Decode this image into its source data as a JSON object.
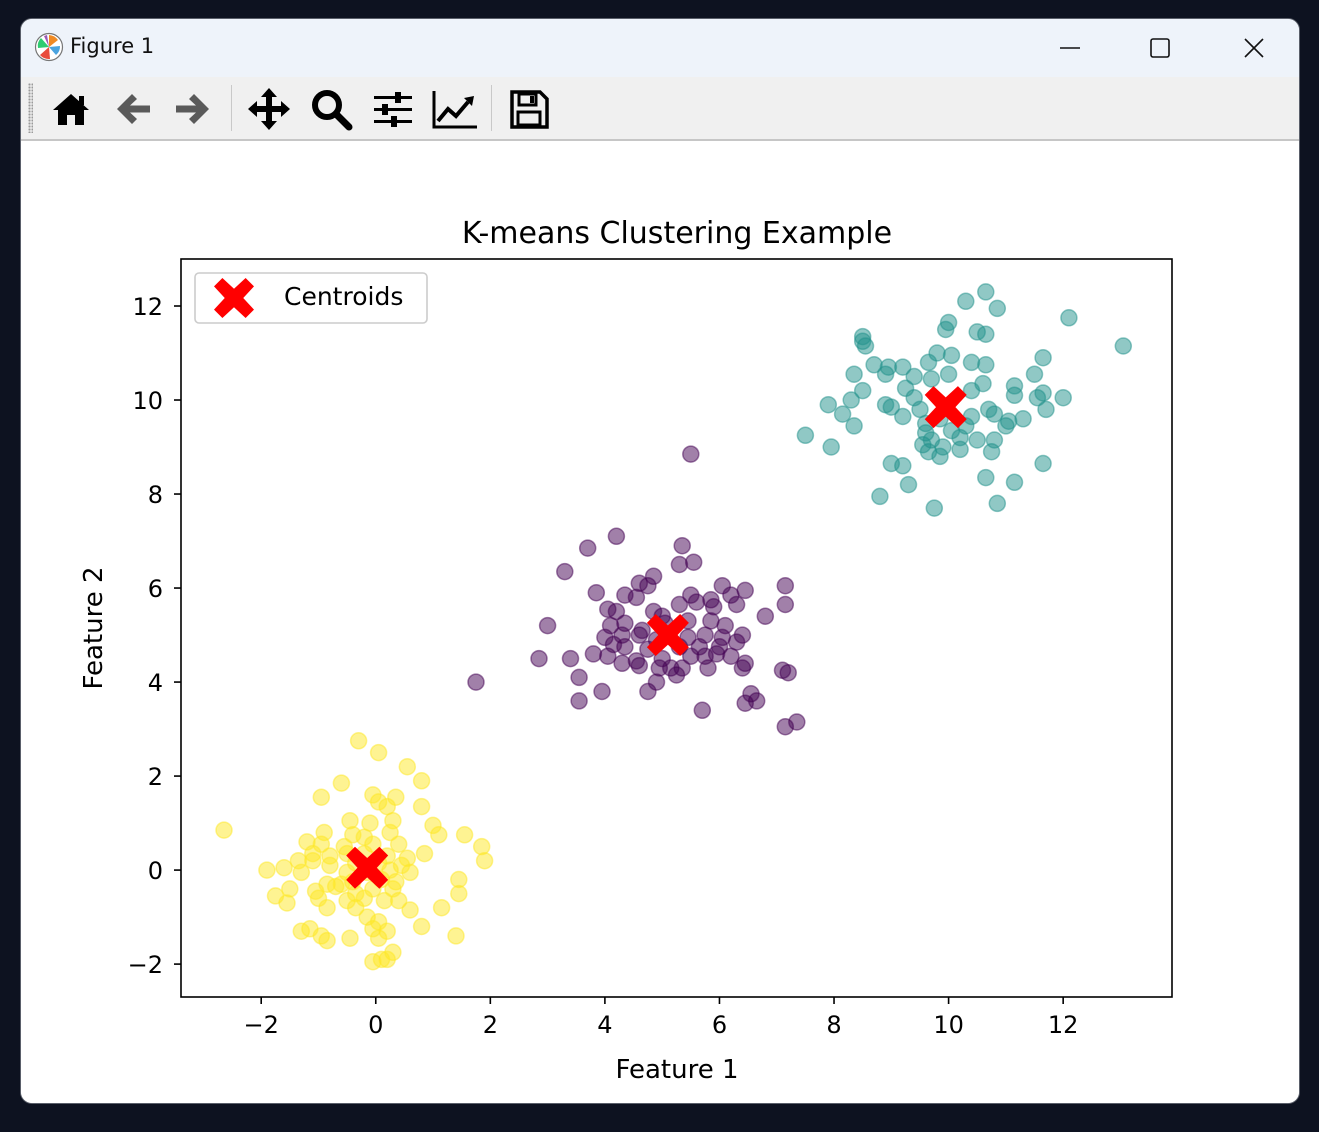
{
  "window": {
    "title": "Figure 1",
    "controls": [
      "minimize-icon",
      "maximize-icon",
      "close-icon"
    ]
  },
  "toolbar": {
    "buttons": [
      {
        "name": "home-button",
        "icon": "home-icon"
      },
      {
        "name": "back-button",
        "icon": "arrow-left-icon"
      },
      {
        "name": "forward-button",
        "icon": "arrow-right-icon"
      },
      {
        "name": "pan-button",
        "icon": "move-icon"
      },
      {
        "name": "zoom-button",
        "icon": "magnifier-icon"
      },
      {
        "name": "configure-subplots-button",
        "icon": "sliders-icon"
      },
      {
        "name": "edit-axes-button",
        "icon": "line-chart-icon"
      },
      {
        "name": "save-button",
        "icon": "floppy-disk-icon"
      }
    ]
  },
  "chart_data": {
    "type": "scatter",
    "title": "K-means Clustering Example",
    "xlabel": "Feature 1",
    "ylabel": "Feature 2",
    "xlim": [
      -3.4,
      13.9
    ],
    "ylim": [
      -2.7,
      13.0
    ],
    "xticks": [
      -2,
      0,
      2,
      4,
      6,
      8,
      10,
      12
    ],
    "yticks": [
      -2,
      0,
      2,
      4,
      6,
      8,
      10,
      12
    ],
    "xtick_labels": [
      "−2",
      "0",
      "2",
      "4",
      "6",
      "8",
      "10",
      "12"
    ],
    "ytick_labels": [
      "−2",
      "0",
      "2",
      "4",
      "6",
      "8",
      "10",
      "12"
    ],
    "grid": false,
    "legend": {
      "placement": "upper-left",
      "entries": [
        "Centroids"
      ]
    },
    "colors": {
      "cluster_0": "#440154",
      "cluster_1": "#21918c",
      "cluster_2": "#fde725",
      "centroid": "#ff0000"
    },
    "point_alpha": 0.5,
    "clusters": [
      {
        "color": "#440154",
        "points": [
          [
            5.5,
            8.85
          ],
          [
            4.2,
            7.1
          ],
          [
            3.7,
            6.85
          ],
          [
            5.35,
            6.9
          ],
          [
            3.3,
            6.35
          ],
          [
            5.55,
            6.55
          ],
          [
            5.3,
            6.5
          ],
          [
            4.85,
            6.25
          ],
          [
            4.6,
            6.1
          ],
          [
            4.75,
            6.05
          ],
          [
            6.05,
            6.05
          ],
          [
            6.45,
            5.95
          ],
          [
            7.15,
            6.05
          ],
          [
            3.85,
            5.9
          ],
          [
            4.35,
            5.85
          ],
          [
            4.55,
            5.8
          ],
          [
            5.5,
            5.85
          ],
          [
            5.85,
            5.75
          ],
          [
            6.2,
            5.85
          ],
          [
            4.05,
            5.55
          ],
          [
            4.2,
            5.5
          ],
          [
            4.85,
            5.5
          ],
          [
            5.0,
            5.4
          ],
          [
            5.3,
            5.65
          ],
          [
            5.6,
            5.7
          ],
          [
            5.9,
            5.6
          ],
          [
            6.3,
            5.65
          ],
          [
            7.15,
            5.65
          ],
          [
            6.8,
            5.4
          ],
          [
            3.0,
            5.2
          ],
          [
            4.1,
            5.2
          ],
          [
            4.35,
            5.25
          ],
          [
            4.65,
            5.1
          ],
          [
            5.05,
            5.25
          ],
          [
            5.45,
            5.3
          ],
          [
            5.85,
            5.3
          ],
          [
            6.1,
            5.2
          ],
          [
            4.0,
            4.95
          ],
          [
            4.3,
            5.0
          ],
          [
            4.6,
            5.0
          ],
          [
            4.9,
            4.9
          ],
          [
            5.45,
            4.95
          ],
          [
            5.75,
            5.0
          ],
          [
            6.05,
            4.95
          ],
          [
            6.4,
            5.0
          ],
          [
            4.15,
            4.8
          ],
          [
            4.35,
            4.75
          ],
          [
            4.75,
            4.7
          ],
          [
            5.3,
            4.75
          ],
          [
            5.65,
            4.75
          ],
          [
            6.0,
            4.75
          ],
          [
            6.3,
            4.85
          ],
          [
            3.4,
            4.5
          ],
          [
            3.8,
            4.6
          ],
          [
            4.05,
            4.55
          ],
          [
            4.3,
            4.4
          ],
          [
            4.55,
            4.45
          ],
          [
            5.0,
            4.5
          ],
          [
            5.15,
            4.3
          ],
          [
            5.5,
            4.55
          ],
          [
            5.75,
            4.55
          ],
          [
            5.95,
            4.6
          ],
          [
            6.2,
            4.55
          ],
          [
            6.45,
            4.4
          ],
          [
            7.1,
            4.25
          ],
          [
            7.2,
            4.2
          ],
          [
            2.85,
            4.5
          ],
          [
            4.6,
            4.35
          ],
          [
            4.95,
            4.3
          ],
          [
            5.35,
            4.3
          ],
          [
            5.25,
            4.15
          ],
          [
            5.8,
            4.3
          ],
          [
            6.4,
            4.3
          ],
          [
            1.75,
            4.0
          ],
          [
            3.55,
            4.1
          ],
          [
            4.9,
            4.0
          ],
          [
            3.95,
            3.8
          ],
          [
            4.75,
            3.8
          ],
          [
            6.55,
            3.75
          ],
          [
            6.65,
            3.6
          ],
          [
            6.45,
            3.55
          ],
          [
            3.55,
            3.6
          ],
          [
            5.7,
            3.4
          ],
          [
            7.35,
            3.15
          ],
          [
            7.15,
            3.05
          ]
        ]
      },
      {
        "color": "#21918c",
        "points": [
          [
            10.65,
            12.3
          ],
          [
            10.3,
            12.1
          ],
          [
            10.85,
            11.95
          ],
          [
            12.1,
            11.75
          ],
          [
            10.0,
            11.65
          ],
          [
            9.95,
            11.5
          ],
          [
            10.5,
            11.45
          ],
          [
            10.65,
            11.4
          ],
          [
            8.5,
            11.35
          ],
          [
            8.5,
            11.25
          ],
          [
            8.55,
            11.15
          ],
          [
            13.05,
            11.15
          ],
          [
            11.65,
            10.9
          ],
          [
            9.8,
            11.0
          ],
          [
            10.05,
            10.95
          ],
          [
            8.7,
            10.75
          ],
          [
            8.95,
            10.7
          ],
          [
            9.2,
            10.7
          ],
          [
            9.65,
            10.8
          ],
          [
            10.4,
            10.8
          ],
          [
            10.65,
            10.75
          ],
          [
            8.35,
            10.55
          ],
          [
            8.9,
            10.55
          ],
          [
            9.4,
            10.5
          ],
          [
            9.7,
            10.45
          ],
          [
            10.0,
            10.55
          ],
          [
            10.6,
            10.35
          ],
          [
            11.15,
            10.3
          ],
          [
            11.5,
            10.55
          ],
          [
            8.5,
            10.2
          ],
          [
            9.25,
            10.25
          ],
          [
            9.4,
            10.05
          ],
          [
            10.4,
            10.2
          ],
          [
            11.15,
            10.1
          ],
          [
            11.55,
            10.05
          ],
          [
            11.65,
            10.15
          ],
          [
            12.0,
            10.05
          ],
          [
            8.3,
            10.0
          ],
          [
            7.9,
            9.9
          ],
          [
            8.9,
            9.9
          ],
          [
            9.0,
            9.85
          ],
          [
            9.5,
            9.8
          ],
          [
            10.7,
            9.8
          ],
          [
            11.7,
            9.8
          ],
          [
            8.15,
            9.7
          ],
          [
            9.2,
            9.65
          ],
          [
            9.6,
            9.5
          ],
          [
            9.85,
            9.6
          ],
          [
            10.4,
            9.65
          ],
          [
            10.8,
            9.7
          ],
          [
            11.05,
            9.55
          ],
          [
            11.3,
            9.6
          ],
          [
            9.6,
            9.3
          ],
          [
            10.05,
            9.35
          ],
          [
            10.3,
            9.45
          ],
          [
            11.0,
            9.45
          ],
          [
            8.35,
            9.45
          ],
          [
            7.5,
            9.25
          ],
          [
            9.7,
            9.15
          ],
          [
            10.2,
            9.2
          ],
          [
            10.5,
            9.15
          ],
          [
            10.8,
            9.15
          ],
          [
            9.55,
            9.05
          ],
          [
            9.9,
            9.0
          ],
          [
            7.95,
            9.0
          ],
          [
            9.65,
            8.9
          ],
          [
            10.2,
            8.95
          ],
          [
            9.85,
            8.8
          ],
          [
            10.75,
            8.9
          ],
          [
            9.0,
            8.65
          ],
          [
            9.2,
            8.6
          ],
          [
            11.65,
            8.65
          ],
          [
            10.65,
            8.35
          ],
          [
            11.15,
            8.25
          ],
          [
            9.3,
            8.2
          ],
          [
            8.8,
            7.95
          ],
          [
            10.85,
            7.8
          ],
          [
            9.75,
            7.7
          ]
        ]
      },
      {
        "color": "#fde725",
        "points": [
          [
            -0.3,
            2.75
          ],
          [
            0.05,
            2.5
          ],
          [
            0.55,
            2.2
          ],
          [
            -0.6,
            1.85
          ],
          [
            0.8,
            1.9
          ],
          [
            -0.95,
            1.55
          ],
          [
            -0.05,
            1.6
          ],
          [
            0.05,
            1.45
          ],
          [
            0.35,
            1.55
          ],
          [
            0.2,
            1.35
          ],
          [
            0.8,
            1.35
          ],
          [
            -0.45,
            1.05
          ],
          [
            -0.1,
            1.0
          ],
          [
            0.3,
            1.05
          ],
          [
            -2.65,
            0.85
          ],
          [
            -0.9,
            0.8
          ],
          [
            -0.4,
            0.75
          ],
          [
            -0.2,
            0.7
          ],
          [
            0.25,
            0.8
          ],
          [
            1.0,
            0.95
          ],
          [
            1.1,
            0.75
          ],
          [
            1.55,
            0.75
          ],
          [
            -1.2,
            0.6
          ],
          [
            -0.95,
            0.55
          ],
          [
            -0.55,
            0.5
          ],
          [
            -0.05,
            0.55
          ],
          [
            0.4,
            0.55
          ],
          [
            -1.1,
            0.35
          ],
          [
            -0.8,
            0.3
          ],
          [
            -0.5,
            0.35
          ],
          [
            -0.2,
            0.35
          ],
          [
            0.2,
            0.3
          ],
          [
            0.55,
            0.25
          ],
          [
            0.85,
            0.35
          ],
          [
            1.85,
            0.5
          ],
          [
            -1.35,
            0.2
          ],
          [
            -1.1,
            0.2
          ],
          [
            -0.8,
            0.1
          ],
          [
            -0.35,
            0.15
          ],
          [
            0.05,
            0.15
          ],
          [
            0.45,
            0.1
          ],
          [
            1.9,
            0.2
          ],
          [
            -1.9,
            0.0
          ],
          [
            -1.6,
            0.05
          ],
          [
            -1.3,
            -0.05
          ],
          [
            -0.5,
            -0.05
          ],
          [
            -0.15,
            -0.05
          ],
          [
            0.25,
            0.0
          ],
          [
            0.6,
            -0.05
          ],
          [
            -0.85,
            -0.3
          ],
          [
            -0.6,
            -0.3
          ],
          [
            -0.4,
            -0.25
          ],
          [
            0.1,
            -0.2
          ],
          [
            0.35,
            -0.25
          ],
          [
            1.45,
            -0.2
          ],
          [
            -1.5,
            -0.4
          ],
          [
            -1.05,
            -0.45
          ],
          [
            -0.7,
            -0.35
          ],
          [
            -0.35,
            -0.5
          ],
          [
            -0.05,
            -0.4
          ],
          [
            0.3,
            -0.4
          ],
          [
            1.45,
            -0.5
          ],
          [
            -1.75,
            -0.55
          ],
          [
            -1.0,
            -0.6
          ],
          [
            -0.5,
            -0.65
          ],
          [
            -0.2,
            -0.6
          ],
          [
            0.15,
            -0.65
          ],
          [
            0.4,
            -0.65
          ],
          [
            -1.55,
            -0.7
          ],
          [
            -0.85,
            -0.8
          ],
          [
            -0.35,
            -0.8
          ],
          [
            0.6,
            -0.85
          ],
          [
            1.15,
            -0.8
          ],
          [
            -0.15,
            -1.0
          ],
          [
            0.05,
            -1.1
          ],
          [
            0.8,
            -1.2
          ],
          [
            -1.15,
            -1.25
          ],
          [
            -0.05,
            -1.25
          ],
          [
            0.2,
            -1.3
          ],
          [
            -1.3,
            -1.3
          ],
          [
            -0.95,
            -1.4
          ],
          [
            1.4,
            -1.4
          ],
          [
            -0.45,
            -1.45
          ],
          [
            0.05,
            -1.45
          ],
          [
            -0.85,
            -1.5
          ],
          [
            0.3,
            -1.75
          ],
          [
            0.2,
            -1.9
          ],
          [
            -0.05,
            -1.95
          ],
          [
            0.1,
            -1.9
          ]
        ]
      }
    ],
    "centroids": [
      [
        5.1,
        5.0
      ],
      [
        9.95,
        9.85
      ],
      [
        -0.15,
        0.05
      ]
    ]
  }
}
